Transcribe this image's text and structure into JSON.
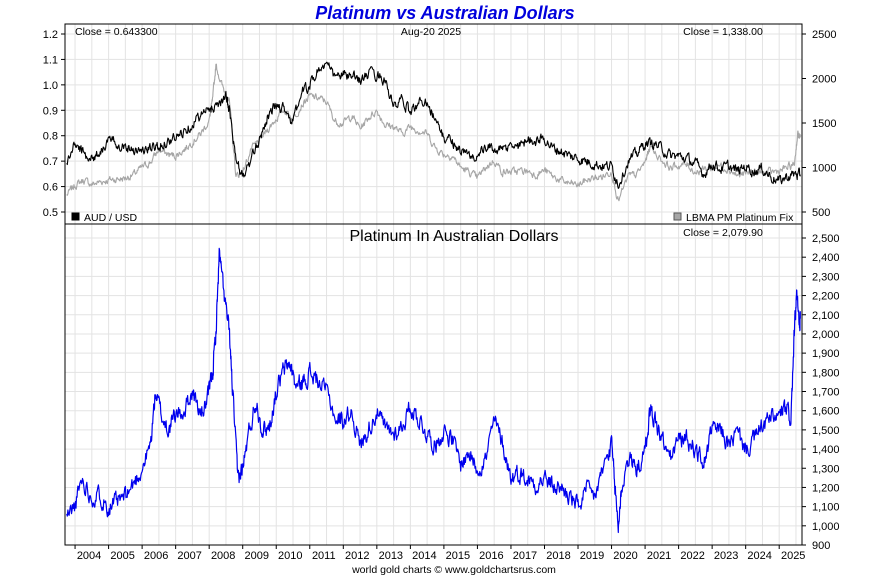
{
  "title": "Platinum vs Australian Dollars",
  "footer": "world gold charts © www.goldchartsrus.com",
  "colors": {
    "title": "#0000dd",
    "aud": "#000000",
    "platinum": "#a6a6a6",
    "pt_aud": "#0000ee",
    "grid": "#e3e3e3",
    "frame": "#000000"
  },
  "chart_data": [
    {
      "type": "line",
      "panel": "top",
      "annotations": {
        "close_left": "Close = 0.643300",
        "date": "Aug-20  2025",
        "close_right": "Close = 1,338.00"
      },
      "x_ticks": [
        "2004",
        "2005",
        "2006",
        "2007",
        "2008",
        "2009",
        "2010",
        "2011",
        "2012",
        "2013",
        "2014",
        "2015",
        "2016",
        "2017",
        "2018",
        "2019",
        "2020",
        "2021",
        "2022",
        "2023",
        "2024",
        "2025"
      ],
      "y_left": {
        "ticks": [
          "0.5",
          "0.6",
          "0.7",
          "0.8",
          "0.9",
          "1.0",
          "1.1",
          "1.2"
        ],
        "range": [
          0.5,
          1.2
        ]
      },
      "y_right": {
        "ticks": [
          "500",
          "1000",
          "1500",
          "2000",
          "2500"
        ],
        "range": [
          500,
          2500
        ]
      },
      "grid": true,
      "legend_position": "bottom",
      "series": [
        {
          "name": "AUD / USD",
          "axis": "left",
          "color_key": "aud",
          "x": [
            2003.75,
            2004.0,
            2004.25,
            2004.5,
            2004.75,
            2005.0,
            2005.25,
            2005.5,
            2005.75,
            2006.0,
            2006.25,
            2006.5,
            2006.75,
            2007.0,
            2007.25,
            2007.5,
            2007.75,
            2008.0,
            2008.25,
            2008.5,
            2008.6,
            2008.8,
            2009.0,
            2009.25,
            2009.5,
            2009.75,
            2010.0,
            2010.25,
            2010.5,
            2010.75,
            2011.0,
            2011.25,
            2011.5,
            2011.75,
            2012.0,
            2012.25,
            2012.5,
            2012.75,
            2013.0,
            2013.25,
            2013.5,
            2013.75,
            2014.0,
            2014.25,
            2014.5,
            2014.75,
            2015.0,
            2015.25,
            2015.5,
            2015.75,
            2016.0,
            2016.25,
            2016.5,
            2016.75,
            2017.0,
            2017.25,
            2017.5,
            2017.75,
            2018.0,
            2018.25,
            2018.5,
            2018.75,
            2019.0,
            2019.25,
            2019.5,
            2019.75,
            2020.0,
            2020.2,
            2020.5,
            2020.75,
            2021.0,
            2021.25,
            2021.5,
            2021.75,
            2022.0,
            2022.25,
            2022.5,
            2022.75,
            2023.0,
            2023.25,
            2023.5,
            2023.75,
            2024.0,
            2024.25,
            2024.5,
            2024.75,
            2025.0,
            2025.25,
            2025.5,
            2025.63
          ],
          "y": [
            0.69,
            0.77,
            0.73,
            0.71,
            0.74,
            0.78,
            0.77,
            0.76,
            0.75,
            0.74,
            0.75,
            0.76,
            0.78,
            0.79,
            0.82,
            0.85,
            0.88,
            0.9,
            0.93,
            0.95,
            0.9,
            0.7,
            0.64,
            0.7,
            0.79,
            0.88,
            0.92,
            0.91,
            0.85,
            0.97,
            1.0,
            1.06,
            1.08,
            1.03,
            1.04,
            1.03,
            1.02,
            1.04,
            1.04,
            1.02,
            0.91,
            0.94,
            0.89,
            0.93,
            0.94,
            0.86,
            0.79,
            0.78,
            0.74,
            0.72,
            0.72,
            0.75,
            0.75,
            0.74,
            0.76,
            0.76,
            0.79,
            0.78,
            0.79,
            0.75,
            0.74,
            0.72,
            0.71,
            0.7,
            0.69,
            0.68,
            0.68,
            0.61,
            0.7,
            0.73,
            0.77,
            0.77,
            0.75,
            0.72,
            0.72,
            0.71,
            0.69,
            0.65,
            0.69,
            0.67,
            0.68,
            0.66,
            0.68,
            0.66,
            0.67,
            0.64,
            0.62,
            0.64,
            0.65,
            0.64
          ]
        },
        {
          "name": "LBMA PM Platinum Fix",
          "axis": "right",
          "color_key": "platinum",
          "x": [
            2003.75,
            2004.0,
            2004.25,
            2004.5,
            2004.75,
            2005.0,
            2005.25,
            2005.5,
            2005.75,
            2006.0,
            2006.25,
            2006.5,
            2006.75,
            2007.0,
            2007.25,
            2007.5,
            2007.75,
            2008.0,
            2008.1,
            2008.2,
            2008.4,
            2008.6,
            2008.8,
            2009.0,
            2009.25,
            2009.5,
            2009.75,
            2010.0,
            2010.25,
            2010.5,
            2010.75,
            2011.0,
            2011.25,
            2011.5,
            2011.75,
            2012.0,
            2012.25,
            2012.5,
            2012.75,
            2013.0,
            2013.25,
            2013.5,
            2013.75,
            2014.0,
            2014.25,
            2014.5,
            2014.75,
            2015.0,
            2015.25,
            2015.5,
            2015.75,
            2016.0,
            2016.25,
            2016.5,
            2016.75,
            2017.0,
            2017.25,
            2017.5,
            2017.75,
            2018.0,
            2018.25,
            2018.5,
            2018.75,
            2019.0,
            2019.25,
            2019.5,
            2019.75,
            2020.0,
            2020.2,
            2020.5,
            2020.75,
            2021.0,
            2021.15,
            2021.5,
            2021.75,
            2022.0,
            2022.25,
            2022.5,
            2022.75,
            2023.0,
            2023.25,
            2023.5,
            2023.75,
            2024.0,
            2024.25,
            2024.5,
            2024.75,
            2025.0,
            2025.25,
            2025.45,
            2025.55,
            2025.63
          ],
          "y": [
            690,
            800,
            860,
            810,
            840,
            860,
            870,
            880,
            920,
            1000,
            1060,
            1200,
            1150,
            1130,
            1200,
            1290,
            1380,
            1530,
            1750,
            2150,
            1900,
            1750,
            900,
            950,
            1200,
            1300,
            1430,
            1550,
            1650,
            1550,
            1700,
            1800,
            1780,
            1740,
            1520,
            1500,
            1580,
            1440,
            1560,
            1640,
            1480,
            1460,
            1380,
            1460,
            1420,
            1380,
            1220,
            1150,
            1130,
            1000,
            950,
            880,
            1000,
            1080,
            950,
            950,
            960,
            960,
            920,
            970,
            900,
            850,
            820,
            800,
            860,
            880,
            900,
            960,
            620,
            900,
            920,
            1060,
            1240,
            1080,
            1000,
            1020,
            1030,
            950,
            980,
            1000,
            1020,
            980,
            910,
            930,
            960,
            930,
            950,
            960,
            1000,
            1030,
            1380,
            1338
          ]
        }
      ]
    },
    {
      "type": "line",
      "panel": "bottom",
      "title": "Platinum In Australian Dollars",
      "annotations": {
        "close_right": "Close = 2,079.90"
      },
      "x_ticks": [
        "2004",
        "2005",
        "2006",
        "2007",
        "2008",
        "2009",
        "2010",
        "2011",
        "2012",
        "2013",
        "2014",
        "2015",
        "2016",
        "2017",
        "2018",
        "2019",
        "2020",
        "2021",
        "2022",
        "2023",
        "2024",
        "2025"
      ],
      "y_right": {
        "ticks": [
          "900",
          "1,000",
          "1,100",
          "1,200",
          "1,300",
          "1,400",
          "1,500",
          "1,600",
          "1,700",
          "1,800",
          "1,900",
          "2,000",
          "2,100",
          "2,200",
          "2,300",
          "2,400",
          "2,500"
        ],
        "range": [
          900,
          2500
        ]
      },
      "grid": true,
      "series": [
        {
          "name": "",
          "axis": "right",
          "color_key": "pt_aud",
          "x": [
            2003.75,
            2004.0,
            2004.2,
            2004.5,
            2004.75,
            2005.0,
            2005.25,
            2005.5,
            2005.75,
            2006.0,
            2006.25,
            2006.4,
            2006.6,
            2006.8,
            2007.0,
            2007.25,
            2007.5,
            2007.75,
            2007.95,
            2008.1,
            2008.2,
            2008.3,
            2008.45,
            2008.6,
            2008.7,
            2008.85,
            2009.0,
            2009.2,
            2009.4,
            2009.6,
            2009.8,
            2010.0,
            2010.2,
            2010.4,
            2010.6,
            2010.8,
            2011.0,
            2011.2,
            2011.5,
            2011.8,
            2012.0,
            2012.25,
            2012.5,
            2012.75,
            2013.0,
            2013.25,
            2013.5,
            2013.75,
            2014.0,
            2014.25,
            2014.5,
            2014.75,
            2015.0,
            2015.25,
            2015.5,
            2015.75,
            2016.0,
            2016.25,
            2016.5,
            2016.75,
            2017.0,
            2017.25,
            2017.5,
            2017.75,
            2018.0,
            2018.25,
            2018.5,
            2018.75,
            2019.0,
            2019.25,
            2019.5,
            2019.75,
            2020.0,
            2020.1,
            2020.2,
            2020.3,
            2020.5,
            2020.75,
            2021.0,
            2021.15,
            2021.3,
            2021.5,
            2021.75,
            2022.0,
            2022.25,
            2022.5,
            2022.75,
            2023.0,
            2023.25,
            2023.5,
            2023.75,
            2024.0,
            2024.25,
            2024.5,
            2024.75,
            2025.0,
            2025.2,
            2025.35,
            2025.45,
            2025.52,
            2025.6,
            2025.63
          ],
          "y": [
            1050,
            1100,
            1250,
            1150,
            1160,
            1100,
            1120,
            1150,
            1220,
            1300,
            1420,
            1700,
            1560,
            1500,
            1580,
            1600,
            1700,
            1580,
            1650,
            1800,
            2000,
            2420,
            2200,
            2000,
            1700,
            1250,
            1300,
            1500,
            1650,
            1500,
            1520,
            1700,
            1800,
            1850,
            1720,
            1750,
            1800,
            1760,
            1700,
            1550,
            1550,
            1600,
            1420,
            1500,
            1600,
            1500,
            1480,
            1520,
            1620,
            1560,
            1480,
            1420,
            1500,
            1450,
            1320,
            1380,
            1300,
            1350,
            1550,
            1430,
            1250,
            1280,
            1240,
            1220,
            1250,
            1200,
            1200,
            1150,
            1100,
            1180,
            1150,
            1300,
            1420,
            1200,
            1000,
            1200,
            1350,
            1300,
            1380,
            1600,
            1550,
            1450,
            1350,
            1450,
            1450,
            1400,
            1320,
            1500,
            1500,
            1420,
            1480,
            1400,
            1450,
            1520,
            1560,
            1570,
            1600,
            1560,
            2000,
            2200,
            2050,
            2080
          ]
        }
      ]
    }
  ]
}
